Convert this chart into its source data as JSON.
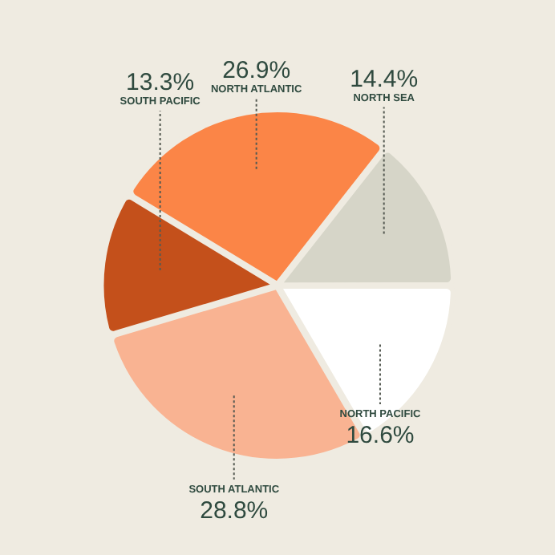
{
  "chart_data": {
    "type": "pie",
    "categories": [
      "NORTH ATLANTIC",
      "NORTH SEA",
      "NORTH PACIFIC",
      "SOUTH ATLANTIC",
      "SOUTH PACIFIC"
    ],
    "values": [
      26.9,
      14.4,
      16.6,
      28.8,
      13.3
    ],
    "value_labels": [
      "26.9%",
      "14.4%",
      "16.6%",
      "28.8%",
      "13.3%"
    ],
    "colors": [
      "#fb8547",
      "#d6d5c8",
      "#ffffff",
      "#f9b392",
      "#c4501b"
    ],
    "legend": false
  }
}
